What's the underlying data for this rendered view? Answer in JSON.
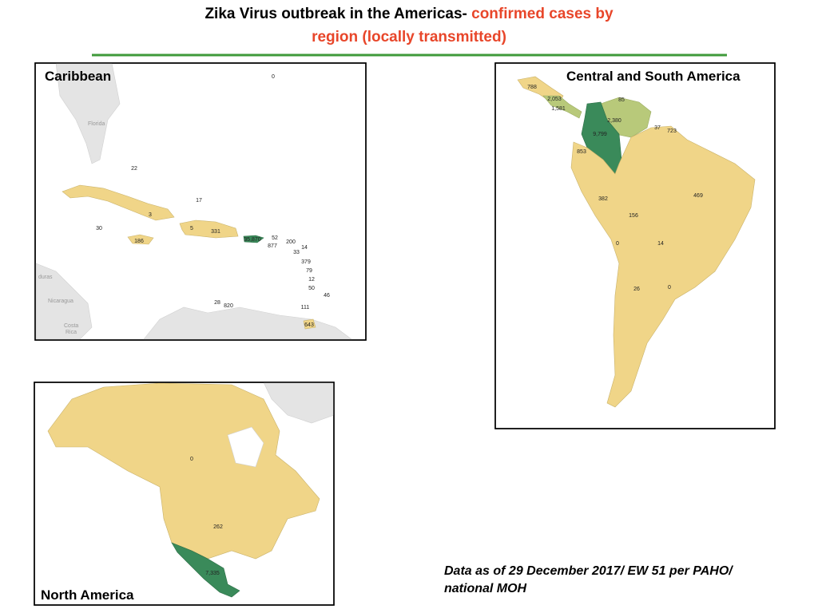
{
  "title": {
    "line1": "Zika Virus outbreak in the Americas-",
    "line1_red": "confirmed cases by",
    "line2": "region (locally transmitted)"
  },
  "panels": [
    {
      "name": "Caribbean",
      "labels": [
        "0",
        "22",
        "17",
        "3",
        "30",
        "5",
        "331",
        "186",
        "35,870",
        "52",
        "877",
        "200",
        "14",
        "33",
        "379",
        "79",
        "12",
        "50",
        "46",
        "28",
        "820",
        "111",
        "643"
      ],
      "places": [
        "Florida",
        "duras",
        "Nicaragua",
        "Costa",
        "Rica"
      ]
    },
    {
      "name": "Central and South America",
      "labels": [
        "788",
        "2,053",
        "1,581",
        "85",
        "2,380",
        "9,799",
        "37",
        "723",
        "853",
        "382",
        "469",
        "156",
        "0",
        "14",
        "26",
        "0"
      ]
    },
    {
      "name": "North America",
      "labels": [
        "0",
        "262",
        "7,335"
      ]
    }
  ],
  "footnote": [
    "Data as of 29 December 2017/ EW 51 per PAHO/",
    "national MOH"
  ]
}
